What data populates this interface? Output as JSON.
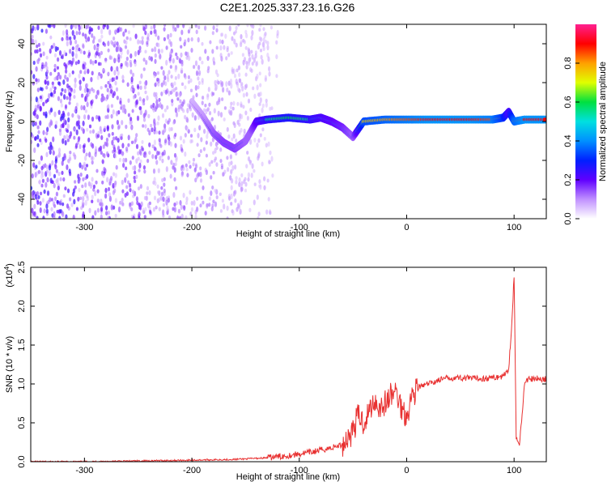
{
  "title": "C2E1.2025.337.23.16.G26",
  "colorbar": {
    "label": "Normalized spectral amplitude",
    "ticks": [
      "0.0",
      "0.2",
      "0.4",
      "0.6",
      "0.8"
    ],
    "range": [
      0,
      1
    ],
    "stops": [
      "#ff2090",
      "#ff0000",
      "#ffa000",
      "#e0ff00",
      "#00e040",
      "#00e0e0",
      "#0090ff",
      "#0020ff",
      "#6000ff",
      "#c090ff",
      "#ffffff"
    ]
  },
  "chart_data": [
    {
      "type": "heatmap",
      "title": "",
      "xlabel": "Height of straight line (km)",
      "ylabel": "Frequency (Hz)",
      "xlim": [
        -350,
        130
      ],
      "ylim": [
        -50,
        50
      ],
      "xticks": [
        "-300",
        "-200",
        "-100",
        "0",
        "100"
      ],
      "yticks": [
        "-40",
        "-20",
        "0",
        "20",
        "40"
      ],
      "noise_region_x": [
        -350,
        -120
      ],
      "ridge": {
        "x": [
          -200,
          -190,
          -180,
          -170,
          -160,
          -150,
          -145,
          -140,
          -130,
          -110,
          -90,
          -80,
          -70,
          -60,
          -50,
          -40,
          -20,
          0,
          20,
          40,
          60,
          80,
          90,
          95,
          100,
          110,
          130
        ],
        "y": [
          10,
          3,
          -6,
          -11,
          -14,
          -10,
          -5,
          0,
          1,
          2,
          1,
          2,
          0,
          -3,
          -8,
          0,
          1,
          1,
          1,
          1,
          1,
          1,
          2,
          5,
          0,
          1,
          1
        ],
        "amplitude": [
          0.15,
          0.2,
          0.3,
          0.35,
          0.35,
          0.3,
          0.3,
          0.45,
          0.55,
          0.6,
          0.55,
          0.5,
          0.45,
          0.4,
          0.3,
          0.75,
          0.8,
          0.85,
          0.9,
          0.9,
          0.9,
          0.85,
          0.7,
          0.5,
          0.8,
          0.9,
          0.9
        ]
      }
    },
    {
      "type": "line",
      "title": "",
      "xlabel": "Height of straight line (km)",
      "ylabel": "SNR (10 * v/v)",
      "y_multiplier_label": "(x10",
      "y_multiplier_exp": "4",
      "xlim": [
        -350,
        130
      ],
      "ylim": [
        0,
        2.5
      ],
      "xticks": [
        "-300",
        "-200",
        "-100",
        "0",
        "100"
      ],
      "yticks": [
        "0.0",
        "0.5",
        "1.0",
        "1.5",
        "2.0",
        "2.5"
      ],
      "color": "#e83030",
      "series": [
        {
          "x": [
            -350,
            -300,
            -250,
            -200,
            -160,
            -130,
            -110,
            -100,
            -90,
            -80,
            -70,
            -60,
            -50,
            -45,
            -40,
            -35,
            -30,
            -25,
            -20,
            -15,
            -10,
            -5,
            0,
            5,
            10,
            20,
            30,
            40,
            50,
            60,
            70,
            80,
            90,
            95,
            98,
            100,
            102,
            105,
            110,
            120,
            130
          ],
          "y": [
            0.0,
            0.0,
            0.01,
            0.02,
            0.03,
            0.05,
            0.08,
            0.1,
            0.12,
            0.15,
            0.18,
            0.22,
            0.4,
            0.6,
            0.5,
            0.65,
            0.8,
            0.7,
            0.75,
            0.85,
            0.9,
            0.7,
            0.6,
            0.85,
            0.95,
            1.0,
            1.05,
            1.08,
            1.08,
            1.07,
            1.07,
            1.08,
            1.1,
            1.2,
            1.8,
            2.4,
            0.3,
            0.2,
            1.05,
            1.07,
            1.06
          ]
        }
      ]
    }
  ]
}
